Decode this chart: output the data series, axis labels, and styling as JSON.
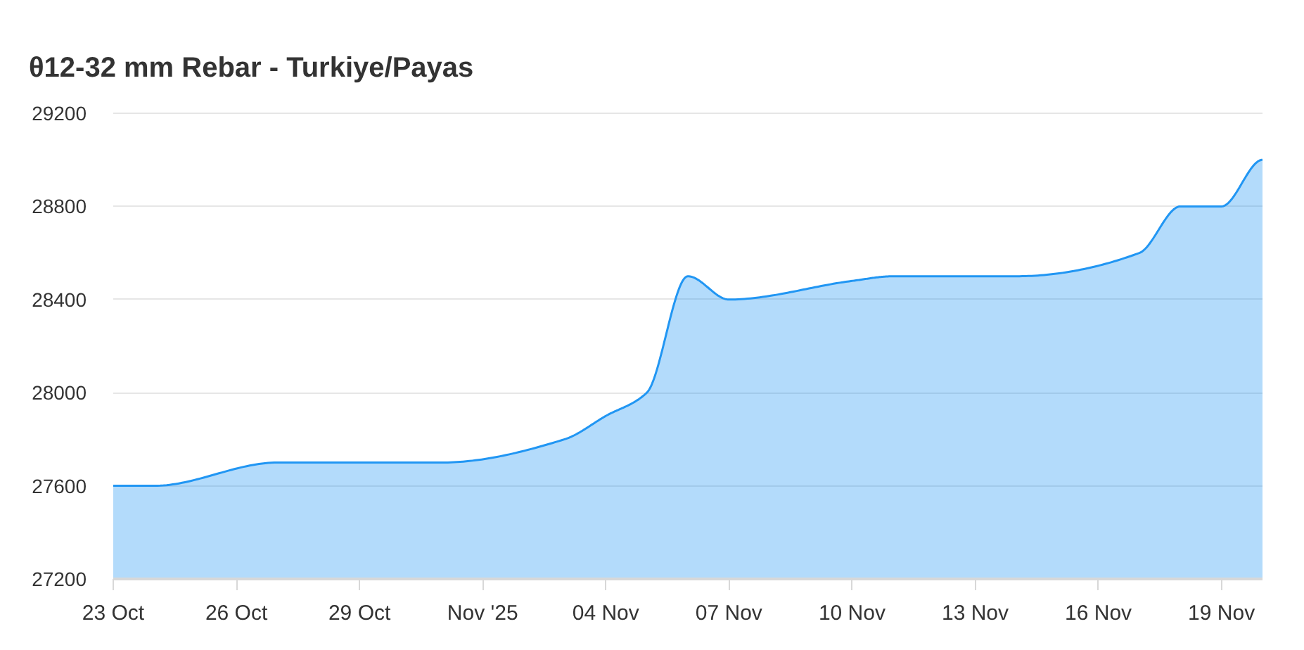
{
  "chart_data": {
    "type": "area",
    "title": "θ12-32 mm Rebar - Turkiye/Payas",
    "x": [
      "2025-10-23",
      "2025-10-24",
      "2025-10-27",
      "2025-10-28",
      "2025-10-29",
      "2025-10-30",
      "2025-10-31",
      "2025-11-03",
      "2025-11-04",
      "2025-11-05",
      "2025-11-06",
      "2025-11-07",
      "2025-11-10",
      "2025-11-11",
      "2025-11-12",
      "2025-11-13",
      "2025-11-14",
      "2025-11-17",
      "2025-11-18",
      "2025-11-19",
      "2025-11-20"
    ],
    "values": [
      27600,
      27600,
      27700,
      27700,
      27700,
      27700,
      27700,
      27800,
      27900,
      28000,
      28500,
      28400,
      28480,
      28500,
      28500,
      28500,
      28500,
      28600,
      28800,
      28800,
      29000
    ],
    "color": "#2196f3",
    "xlim": [
      "2025-10-23",
      "2025-11-20"
    ],
    "xticks": [
      {
        "value": "2025-10-23",
        "label": "23 Oct"
      },
      {
        "value": "2025-10-26",
        "label": "26 Oct"
      },
      {
        "value": "2025-10-29",
        "label": "29 Oct"
      },
      {
        "value": "2025-11-01",
        "label": "Nov '25"
      },
      {
        "value": "2025-11-04",
        "label": "04 Nov"
      },
      {
        "value": "2025-11-07",
        "label": "07 Nov"
      },
      {
        "value": "2025-11-10",
        "label": "10 Nov"
      },
      {
        "value": "2025-11-13",
        "label": "13 Nov"
      },
      {
        "value": "2025-11-16",
        "label": "16 Nov"
      },
      {
        "value": "2025-11-19",
        "label": "19 Nov"
      }
    ],
    "ylim": [
      27200,
      29200
    ],
    "yticks": [
      27200,
      27600,
      28000,
      28400,
      28800,
      29200
    ],
    "grid": "y"
  }
}
